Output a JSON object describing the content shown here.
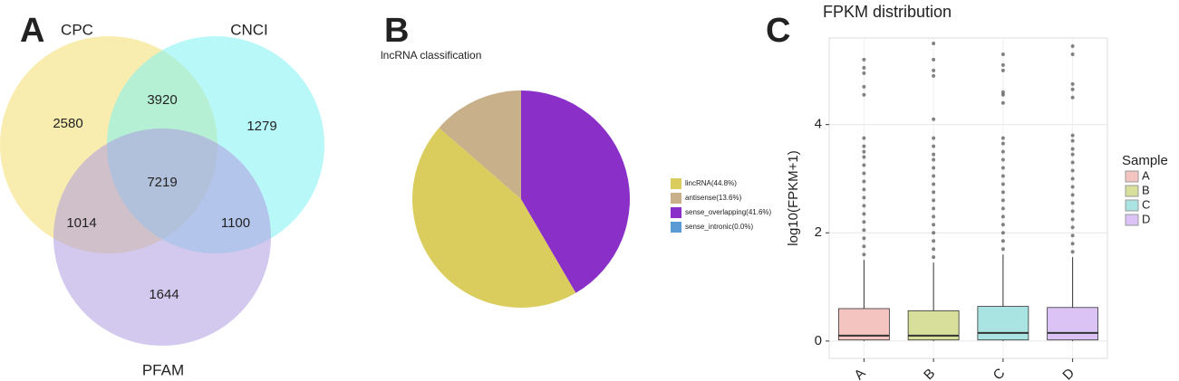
{
  "chart_data": [
    {
      "type": "venn",
      "panel_label": "A",
      "sets": [
        {
          "name": "CPC",
          "color": "#f3df6e"
        },
        {
          "name": "CNCI",
          "color": "#7ff3f3"
        },
        {
          "name": "PFAM",
          "color": "#ae9be0"
        }
      ],
      "regions": [
        {
          "sets": [
            "CPC"
          ],
          "value": 2580
        },
        {
          "sets": [
            "CPC",
            "CNCI"
          ],
          "value": 3920
        },
        {
          "sets": [
            "CNCI"
          ],
          "value": 1279
        },
        {
          "sets": [
            "CPC",
            "CNCI",
            "PFAM"
          ],
          "value": 7219
        },
        {
          "sets": [
            "CPC",
            "PFAM"
          ],
          "value": 1014
        },
        {
          "sets": [
            "CNCI",
            "PFAM"
          ],
          "value": 1100
        },
        {
          "sets": [
            "PFAM"
          ],
          "value": 1644
        }
      ]
    },
    {
      "type": "pie",
      "panel_label": "B",
      "title": "lncRNA classification",
      "categories": [
        "lincRNA(44.8%)",
        "antisense(13.6%)",
        "sense_overlapping(41.6%)",
        "sense_intronic(0.0%)"
      ],
      "values": [
        44.8,
        13.6,
        41.6,
        0.0
      ],
      "colors": [
        "#dacd5d",
        "#c8b08a",
        "#8a2fc8",
        "#5b9bd5"
      ]
    },
    {
      "type": "box",
      "panel_label": "C",
      "title": "FPKM distribution",
      "y_label": "log10(FPKM+1)",
      "legend_title": "Sample",
      "legend": "right",
      "grid": true,
      "categories": [
        "A",
        "B",
        "C",
        "D"
      ],
      "colors": [
        "#f4c5c0",
        "#d7df9b",
        "#a9e4e2",
        "#dcc3f6"
      ],
      "ylim": [
        -0.32,
        5.6
      ],
      "yticks": [
        0,
        2,
        4
      ],
      "boxes": [
        {
          "min": 0,
          "q1": 0.02,
          "median": 0.1,
          "q3": 0.6,
          "max": 1.5,
          "outliers": [
            1.6,
            1.75,
            1.9,
            2.05,
            2.2,
            2.35,
            2.5,
            2.65,
            2.8,
            2.95,
            3.1,
            3.25,
            3.4,
            3.5,
            3.6,
            3.75,
            4.55,
            4.7,
            4.95,
            5.05,
            5.2
          ]
        },
        {
          "min": 0,
          "q1": 0.02,
          "median": 0.1,
          "q3": 0.56,
          "max": 1.45,
          "outliers": [
            1.55,
            1.7,
            1.85,
            2.0,
            2.15,
            2.3,
            2.45,
            2.6,
            2.75,
            2.9,
            3.05,
            3.2,
            3.35,
            3.45,
            3.6,
            3.75,
            4.1,
            4.9,
            5.0,
            5.2,
            5.5
          ]
        },
        {
          "min": 0,
          "q1": 0.02,
          "median": 0.15,
          "q3": 0.64,
          "max": 1.6,
          "outliers": [
            1.7,
            1.85,
            2.0,
            2.15,
            2.3,
            2.45,
            2.6,
            2.75,
            2.9,
            3.05,
            3.2,
            3.35,
            3.5,
            3.65,
            3.75,
            4.4,
            4.55,
            4.6,
            5.0,
            5.1,
            5.3
          ]
        },
        {
          "min": 0,
          "q1": 0.02,
          "median": 0.15,
          "q3": 0.62,
          "max": 1.55,
          "outliers": [
            1.65,
            1.8,
            1.95,
            2.1,
            2.25,
            2.4,
            2.55,
            2.7,
            2.85,
            3.0,
            3.15,
            3.3,
            3.45,
            3.55,
            3.7,
            3.8,
            4.5,
            4.65,
            4.75,
            5.3,
            5.45
          ]
        }
      ]
    }
  ]
}
